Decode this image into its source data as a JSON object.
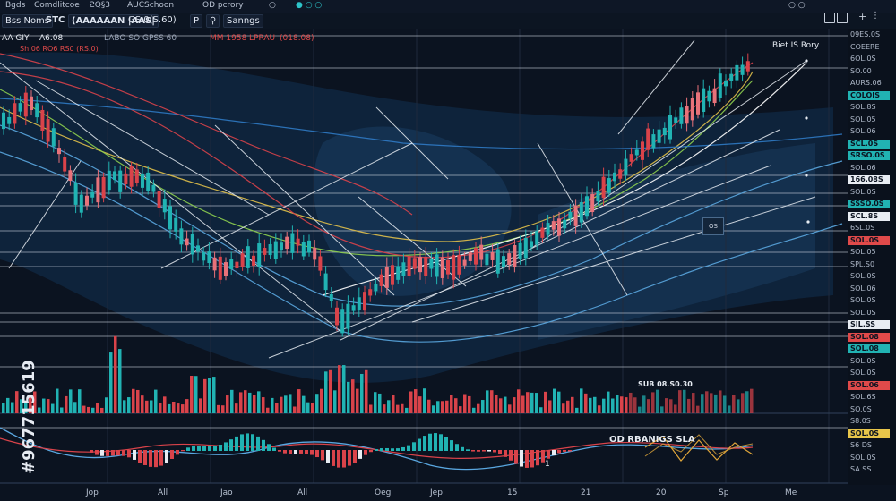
{
  "topbar": {
    "items": [
      "Bgds",
      "Comdlitcoe",
      "ƧQ§3",
      "AUCSchoon",
      "OD pcrory",
      "○",
      "● ○ ○",
      "○ ○"
    ]
  },
  "toolbar": {
    "symbol_box": "Bss Noms",
    "symbol": "STC",
    "title_box": "(AAAAAAN |AAS|",
    "interval": "GS 0(S.60)",
    "btn_p": "P",
    "btn_tag": "⚲",
    "btn_settings": "Sanngs"
  },
  "legend": {
    "line1_a": "AA GIY",
    "line1_b": "Ʌ6.08",
    "line1_c": "LABO SO GPSS 60",
    "line1_d": "MM 1958",
    "line1_e": "LPRAU",
    "line1_f": "(018.08)",
    "line2": "Sh.06  RO6  RS0  (RS.0)",
    "annotation_top": "Biet IS Rory",
    "box_label": "OS",
    "volume_label": "SUB 08.S0.30",
    "osc_label": "OD RBANIGS SLA",
    "osc_mark": "1"
  },
  "price_axis": [
    {
      "text": "09ES.0S",
      "hl": ""
    },
    {
      "text": "COEERE",
      "hl": ""
    },
    {
      "text": "6OL.0S",
      "hl": ""
    },
    {
      "text": "SO.00",
      "hl": ""
    },
    {
      "text": "AURS.06",
      "hl": ""
    },
    {
      "text": "COLOIS",
      "hl": "#21b3b3"
    },
    {
      "text": "SOL.8S",
      "hl": ""
    },
    {
      "text": "SOL.05",
      "hl": ""
    },
    {
      "text": "SOL.06",
      "hl": ""
    },
    {
      "text": "SCL.0S",
      "hl": "#21b3b3"
    },
    {
      "text": "SRSO.0S",
      "hl": "#21b3b3"
    },
    {
      "text": "SOL.06",
      "hl": ""
    },
    {
      "text": "166.08S",
      "hl": "#e8edf3"
    },
    {
      "text": "SOL.0S",
      "hl": ""
    },
    {
      "text": "SSSO.0S",
      "hl": "#21b3b3"
    },
    {
      "text": "SCL.8S",
      "hl": "#e8edf3"
    },
    {
      "text": "6SL.0S",
      "hl": ""
    },
    {
      "text": "SOL.0S",
      "hl": "#e04a4a"
    },
    {
      "text": "SOL.05",
      "hl": ""
    },
    {
      "text": "SPL.S0",
      "hl": ""
    },
    {
      "text": "SOL.0S",
      "hl": ""
    },
    {
      "text": "SOL.06",
      "hl": ""
    },
    {
      "text": "SOL.0S",
      "hl": ""
    },
    {
      "text": "SOL.0S",
      "hl": ""
    },
    {
      "text": "SIL.SS",
      "hl": "#e8edf3"
    },
    {
      "text": "SOL.08",
      "hl": "#e04a4a"
    },
    {
      "text": "SOL.08",
      "hl": "#21b3b3"
    },
    {
      "text": "SOL.0S",
      "hl": ""
    },
    {
      "text": "SOL.0S",
      "hl": ""
    },
    {
      "text": "SOL.06",
      "hl": "#e04a4a"
    },
    {
      "text": "SOL.6S",
      "hl": ""
    },
    {
      "text": "SO.0S",
      "hl": ""
    },
    {
      "text": "S8.0S",
      "hl": ""
    },
    {
      "text": "SOL.0S",
      "hl": "#e8c64a"
    },
    {
      "text": "S6 DS",
      "hl": ""
    },
    {
      "text": "SOL 0S",
      "hl": ""
    },
    {
      "text": "SA SS",
      "hl": ""
    }
  ],
  "time_axis": [
    "Jop",
    "All",
    "Jao",
    "All",
    "Oeg",
    "Jep",
    "15",
    "21",
    "20",
    "Sp",
    "Me"
  ],
  "watermark": "#967715619",
  "colors": {
    "bg": "#0b1320",
    "up": "#21b3b3",
    "down": "#e8727a",
    "down_strong": "#d9434a",
    "grid": "#1f2a3c"
  }
}
